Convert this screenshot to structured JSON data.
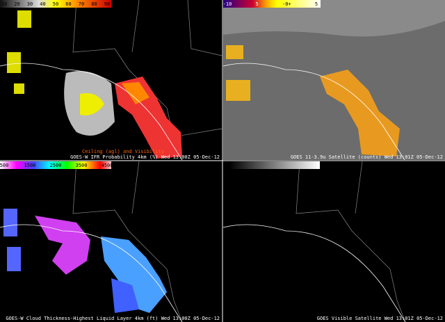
{
  "panels": [
    {
      "colorbar": [
        "10",
        "20",
        "30",
        "40",
        "50",
        "60",
        "70",
        "80",
        "90"
      ],
      "overlay": "Ceiling (agl) and Visibility",
      "caption": "GOES-W IFR Probability 4km (%)  Wed 13:00Z 05-Dec-12"
    },
    {
      "colorbar": [
        "-10",
        "5",
        "-0+",
        "5"
      ],
      "caption": "GOES 11-3.9u Satellite (counts)  Wed 13:01Z 05-Dec-12"
    },
    {
      "colorbar": [
        "500",
        "1500",
        "2500",
        "3500",
        "4500"
      ],
      "caption": "GOES-W Cloud Thickness-Highest Liquid Layer 4km (ft)  Wed 13:00Z 05-Dec-12"
    },
    {
      "colorbar": [],
      "caption": "GOES Visible Satellite  Wed 13:01Z 05-Dec-12"
    }
  ]
}
